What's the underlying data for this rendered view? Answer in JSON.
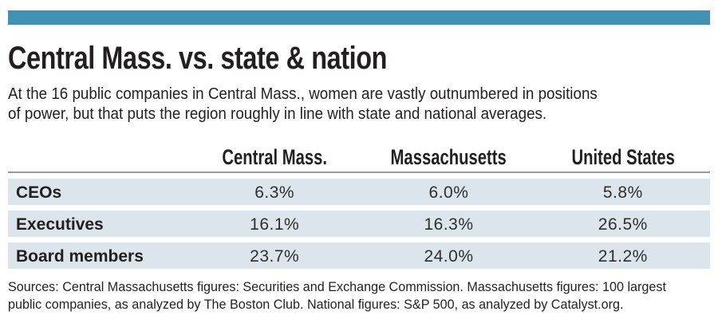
{
  "title": "Central Mass. vs. state & nation",
  "subtitle_lines": [
    "At the 16 public companies in Central Mass., women are vastly outnumbered in positions",
    "of power, but that puts the region roughly in line with state and national averages."
  ],
  "table": {
    "column_headers": [
      "Central Mass.",
      "Massachusetts",
      "United States"
    ],
    "rows": [
      {
        "label": "CEOs",
        "values": [
          "6.3%",
          "6.0%",
          "5.8%"
        ]
      },
      {
        "label": "Executives",
        "values": [
          "16.1%",
          "16.3%",
          "26.5%"
        ]
      },
      {
        "label": "Board members",
        "values": [
          "23.7%",
          "24.0%",
          "21.2%"
        ]
      }
    ]
  },
  "source_lines": [
    "Sources: Central Massachusetts figures: Securities and Exchange Commission. Massachusetts figures: 100 largest",
    "public companies, as analyzed by The Boston Club. National figures: S&P 500, as analyzed by Catalyst.org."
  ],
  "colors": {
    "accent_bar": "#4191b5",
    "row_band": "#dce5eb",
    "header_rule": "#9a9a9a",
    "text": "#231f20"
  },
  "chart_data": {
    "type": "table",
    "title": "Central Mass. vs. state & nation",
    "subtitle": "At the 16 public companies in Central Mass., women are vastly outnumbered in positions of power, but that puts the region roughly in line with state and national averages.",
    "columns": [
      "Category",
      "Central Mass.",
      "Massachusetts",
      "United States"
    ],
    "categories": [
      "CEOs",
      "Executives",
      "Board members"
    ],
    "series": [
      {
        "name": "Central Mass.",
        "values": [
          6.3,
          16.1,
          23.7
        ]
      },
      {
        "name": "Massachusetts",
        "values": [
          6.0,
          16.3,
          24.0
        ]
      },
      {
        "name": "United States",
        "values": [
          5.8,
          26.5,
          21.2
        ]
      }
    ],
    "unit": "%",
    "source": "Sources: Central Massachusetts figures: Securities and Exchange Commission. Massachusetts figures: 100 largest public companies, as analyzed by The Boston Club. National figures: S&P 500, as analyzed by Catalyst.org."
  }
}
